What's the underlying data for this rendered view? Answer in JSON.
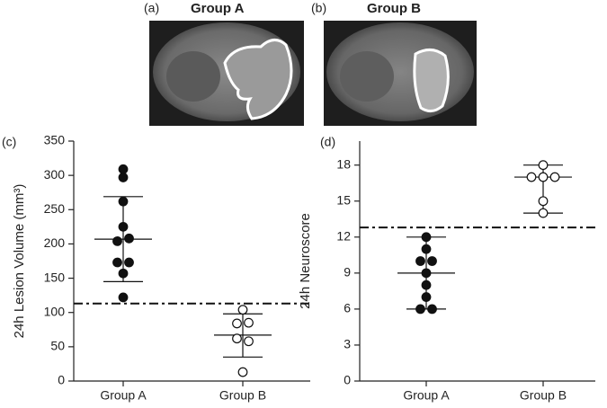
{
  "figure_panels": [
    {
      "label": "(a)",
      "title": "Group A"
    },
    {
      "label": "(b)",
      "title": "Group B"
    }
  ],
  "chart_data": [
    {
      "type": "dotplot",
      "panel_label": "(c)",
      "y_label": "24h Lesion Volume (mm³)",
      "ylim": [
        0,
        350
      ],
      "yticks": [
        0,
        50,
        100,
        150,
        200,
        250,
        300,
        350
      ],
      "threshold": 113,
      "groups": [
        {
          "name": "Group A",
          "filled": true,
          "values": [
            309,
            297,
            262,
            225,
            204,
            208,
            173,
            173,
            157,
            122
          ],
          "center": 207,
          "low": 145,
          "high": 269
        },
        {
          "name": "Group B",
          "filled": false,
          "values": [
            104,
            84,
            85,
            62,
            58,
            13
          ],
          "center": 67,
          "low": 35,
          "high": 98
        }
      ]
    },
    {
      "type": "dotplot",
      "panel_label": "(d)",
      "y_label": "24h Neuroscore",
      "ylim": [
        0,
        20
      ],
      "yticks": [
        0,
        3,
        6,
        9,
        12,
        15,
        18
      ],
      "threshold": 12.8,
      "groups": [
        {
          "name": "Group A",
          "filled": true,
          "values": [
            12,
            11,
            10,
            10,
            9,
            8,
            7,
            6,
            6
          ],
          "center": 9,
          "low": 6,
          "high": 12
        },
        {
          "name": "Group B",
          "filled": false,
          "values": [
            18,
            17,
            17,
            17,
            15,
            14
          ],
          "center": 17,
          "low": 14,
          "high": 18
        }
      ]
    }
  ]
}
